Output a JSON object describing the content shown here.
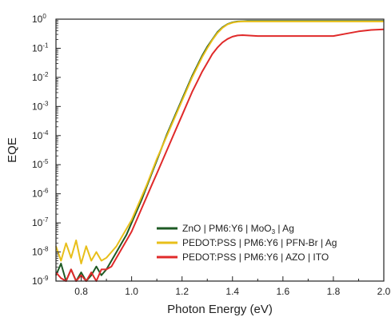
{
  "chart_data": {
    "type": "line",
    "title": "",
    "xlabel": "Photon Energy (eV)",
    "ylabel": "EQE",
    "xlim": [
      0.7,
      2.0
    ],
    "ylim_log10": [
      -9,
      0
    ],
    "yscale": "log",
    "grid": false,
    "legend_placement": "bottom-right",
    "x_ticks": [
      {
        "value": 0.8,
        "label": "0.8"
      },
      {
        "value": 1.0,
        "label": "1.0"
      },
      {
        "value": 1.2,
        "label": "1.2"
      },
      {
        "value": 1.4,
        "label": "1.4"
      },
      {
        "value": 1.6,
        "label": "1.6"
      },
      {
        "value": 1.8,
        "label": "1.8"
      },
      {
        "value": 2.0,
        "label": "2.0"
      }
    ],
    "y_ticks": [
      {
        "exp": 0,
        "base": "10",
        "power": "0"
      },
      {
        "exp": -1,
        "base": "10",
        "power": "-1"
      },
      {
        "exp": -2,
        "base": "10",
        "power": "-2"
      },
      {
        "exp": -3,
        "base": "10",
        "power": "-3"
      },
      {
        "exp": -4,
        "base": "10",
        "power": "-4"
      },
      {
        "exp": -5,
        "base": "10",
        "power": "-5"
      },
      {
        "exp": -6,
        "base": "10",
        "power": "-6"
      },
      {
        "exp": -7,
        "base": "10",
        "power": "-7"
      },
      {
        "exp": -8,
        "base": "10",
        "power": "-8"
      },
      {
        "exp": -9,
        "base": "10",
        "power": "-9"
      }
    ],
    "series": [
      {
        "name": "ZnO | PM6:Y6 | MoO3 | Ag",
        "legend_parts": [
          "ZnO | PM6:Y6 | MoO",
          "3",
          " | Ag"
        ],
        "color": "#1e5a24",
        "x": [
          0.7,
          0.72,
          0.74,
          0.76,
          0.78,
          0.8,
          0.82,
          0.84,
          0.86,
          0.88,
          0.9,
          0.92,
          0.94,
          0.96,
          0.98,
          1.0,
          1.02,
          1.04,
          1.06,
          1.08,
          1.1,
          1.12,
          1.14,
          1.16,
          1.18,
          1.2,
          1.22,
          1.24,
          1.26,
          1.28,
          1.3,
          1.32,
          1.34,
          1.36,
          1.38,
          1.4,
          1.42,
          1.44,
          1.46,
          1.5,
          1.6,
          1.7,
          1.8,
          1.9,
          2.0
        ],
        "y_log10": [
          -8.8,
          -8.4,
          -9.0,
          -8.6,
          -9.0,
          -8.7,
          -9.0,
          -8.8,
          -8.5,
          -8.8,
          -8.6,
          -8.3,
          -8.0,
          -7.7,
          -7.4,
          -7.0,
          -6.6,
          -6.2,
          -5.75,
          -5.3,
          -4.85,
          -4.4,
          -3.95,
          -3.55,
          -3.15,
          -2.75,
          -2.35,
          -1.95,
          -1.6,
          -1.25,
          -0.95,
          -0.7,
          -0.45,
          -0.28,
          -0.17,
          -0.11,
          -0.08,
          -0.07,
          -0.06,
          -0.06,
          -0.06,
          -0.06,
          -0.06,
          -0.06,
          -0.06
        ]
      },
      {
        "name": "PEDOT:PSS | PM6:Y6 | PFN-Br | Ag",
        "legend_parts": [
          "PEDOT:PSS | PM6:Y6 | PFN-Br | Ag"
        ],
        "color": "#e8bf1a",
        "x": [
          0.7,
          0.72,
          0.74,
          0.76,
          0.78,
          0.8,
          0.82,
          0.84,
          0.86,
          0.88,
          0.9,
          0.92,
          0.94,
          0.96,
          0.98,
          1.0,
          1.02,
          1.04,
          1.06,
          1.08,
          1.1,
          1.12,
          1.14,
          1.16,
          1.18,
          1.2,
          1.22,
          1.24,
          1.26,
          1.28,
          1.3,
          1.32,
          1.34,
          1.36,
          1.38,
          1.4,
          1.42,
          1.44,
          1.46,
          1.5,
          1.6,
          1.7,
          1.8,
          1.9,
          2.0
        ],
        "y_log10": [
          -7.8,
          -8.3,
          -7.7,
          -8.2,
          -7.6,
          -8.4,
          -7.8,
          -8.3,
          -8.0,
          -8.3,
          -8.2,
          -8.0,
          -7.8,
          -7.5,
          -7.2,
          -6.9,
          -6.5,
          -6.1,
          -5.7,
          -5.25,
          -4.8,
          -4.4,
          -4.0,
          -3.6,
          -3.2,
          -2.8,
          -2.4,
          -2.0,
          -1.65,
          -1.3,
          -1.0,
          -0.72,
          -0.48,
          -0.3,
          -0.18,
          -0.12,
          -0.09,
          -0.08,
          -0.08,
          -0.08,
          -0.08,
          -0.08,
          -0.08,
          -0.08,
          -0.08
        ]
      },
      {
        "name": "PEDOT:PSS | PM6:Y6 | AZO | ITO",
        "legend_parts": [
          "PEDOT:PSS | PM6:Y6 | AZO | ITO"
        ],
        "color": "#e02a2a",
        "x": [
          0.7,
          0.72,
          0.74,
          0.76,
          0.78,
          0.8,
          0.82,
          0.84,
          0.86,
          0.88,
          0.9,
          0.92,
          0.94,
          0.96,
          0.98,
          1.0,
          1.02,
          1.04,
          1.06,
          1.08,
          1.1,
          1.12,
          1.14,
          1.16,
          1.18,
          1.2,
          1.22,
          1.24,
          1.26,
          1.28,
          1.3,
          1.32,
          1.34,
          1.36,
          1.38,
          1.4,
          1.42,
          1.44,
          1.46,
          1.48,
          1.5,
          1.55,
          1.6,
          1.65,
          1.7,
          1.75,
          1.8,
          1.85,
          1.9,
          1.95,
          2.0
        ],
        "y_log10": [
          -8.7,
          -8.9,
          -9.0,
          -8.6,
          -9.0,
          -8.8,
          -9.0,
          -8.7,
          -9.0,
          -8.6,
          -8.6,
          -8.5,
          -8.2,
          -7.9,
          -7.6,
          -7.3,
          -6.9,
          -6.5,
          -6.1,
          -5.7,
          -5.3,
          -4.9,
          -4.5,
          -4.1,
          -3.7,
          -3.3,
          -2.9,
          -2.5,
          -2.15,
          -1.8,
          -1.5,
          -1.2,
          -0.98,
          -0.8,
          -0.68,
          -0.6,
          -0.56,
          -0.55,
          -0.56,
          -0.57,
          -0.58,
          -0.58,
          -0.58,
          -0.58,
          -0.58,
          -0.58,
          -0.58,
          -0.5,
          -0.42,
          -0.37,
          -0.35
        ]
      }
    ]
  }
}
